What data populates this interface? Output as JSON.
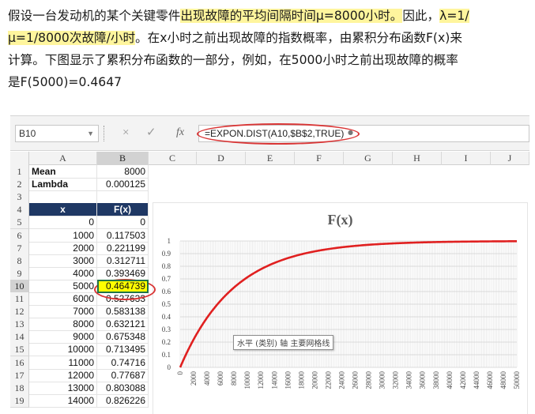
{
  "article": {
    "l1a": "假设一台发动机的某个关键零件",
    "l1b": "出现故障的平均间隔时间μ=8000小时。",
    "l1c": "因此，",
    "l1d": "λ=1/",
    "l2a": "μ=1/8000次故障/小时",
    "l2b": "。在x小时之前出现故障的指数概率，由累积分布函数F(x)来",
    "l3": "计算。下图显示了累积分布函数的一部分，例如，在5000小时之前出现故障的概率",
    "l4": "是F(5000)=0.4647"
  },
  "excel": {
    "name_box": "B10",
    "cancel_glyph": "×",
    "enter_glyph": "✓",
    "fx_glyph": "fx",
    "formula": "=EXPON.DIST(A10,$B$2,TRUE)",
    "columns": [
      "A",
      "B",
      "C",
      "D",
      "E",
      "F",
      "G",
      "H",
      "I",
      "J"
    ],
    "rows": [
      {
        "n": "1",
        "a": "Mean",
        "b": "8000"
      },
      {
        "n": "2",
        "a": "Lambda",
        "b": "0.000125"
      },
      {
        "n": "3",
        "a": "",
        "b": ""
      },
      {
        "n": "4",
        "a": "x",
        "b": "F(x)"
      },
      {
        "n": "5",
        "a": "0",
        "b": "0"
      },
      {
        "n": "6",
        "a": "1000",
        "b": "0.117503"
      },
      {
        "n": "7",
        "a": "2000",
        "b": "0.221199"
      },
      {
        "n": "8",
        "a": "3000",
        "b": "0.312711"
      },
      {
        "n": "9",
        "a": "4000",
        "b": "0.393469"
      },
      {
        "n": "10",
        "a": "5000",
        "b": "0.464739"
      },
      {
        "n": "11",
        "a": "6000",
        "b": "0.527633"
      },
      {
        "n": "12",
        "a": "7000",
        "b": "0.583138"
      },
      {
        "n": "13",
        "a": "8000",
        "b": "0.632121"
      },
      {
        "n": "14",
        "a": "9000",
        "b": "0.675348"
      },
      {
        "n": "15",
        "a": "10000",
        "b": "0.713495"
      },
      {
        "n": "16",
        "a": "11000",
        "b": "0.74716"
      },
      {
        "n": "17",
        "a": "12000",
        "b": "0.77687"
      },
      {
        "n": "18",
        "a": "13000",
        "b": "0.803088"
      },
      {
        "n": "19",
        "a": "14000",
        "b": "0.826226"
      }
    ],
    "tooltip": "水平 (类别) 轴 主要网格线"
  },
  "colors": {
    "accent_red": "#d93636",
    "header_navy": "#1f3864",
    "curve": "#e02020",
    "highlight": "#fff59d"
  },
  "chart_data": {
    "type": "line",
    "title": "F(x)",
    "lambda": 0.000125,
    "x": [
      0,
      2000,
      4000,
      6000,
      8000,
      10000,
      12000,
      14000,
      16000,
      18000,
      20000,
      22000,
      24000,
      26000,
      28000,
      30000,
      32000,
      34000,
      36000,
      38000,
      40000,
      42000,
      44000,
      46000,
      48000,
      50000
    ],
    "ylim": [
      0,
      1
    ],
    "yticks": [
      "0",
      "0.1",
      "0.2",
      "0.3",
      "0.4",
      "0.5",
      "0.6",
      "0.7",
      "0.8",
      "0.9",
      "1"
    ],
    "grid": true
  }
}
